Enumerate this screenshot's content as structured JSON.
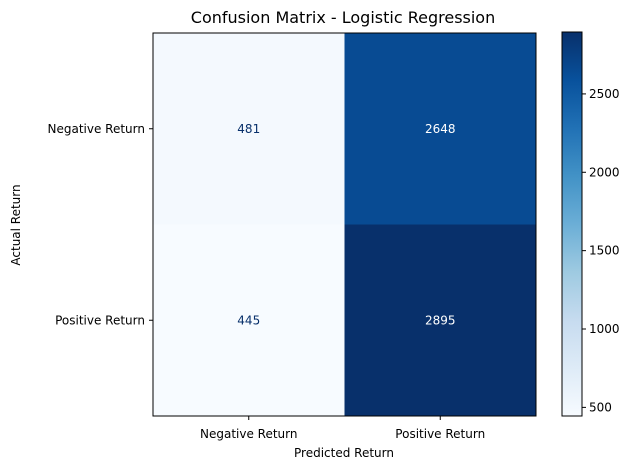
{
  "chart_data": {
    "type": "heatmap",
    "title": "Confusion Matrix - Logistic Regression",
    "xlabel": "Predicted Return",
    "ylabel": "Actual Return",
    "x_categories": [
      "Negative Return",
      "Positive Return"
    ],
    "y_categories": [
      "Negative Return",
      "Positive Return"
    ],
    "values": [
      [
        481,
        2648
      ],
      [
        445,
        2895
      ]
    ],
    "colormap": "Blues",
    "colorbar": {
      "range": [
        445,
        2895
      ],
      "ticks": [
        500,
        1000,
        1500,
        2000,
        2500
      ]
    },
    "text_colors": {
      "dark": "#08306b",
      "light": "#ffffff"
    }
  }
}
